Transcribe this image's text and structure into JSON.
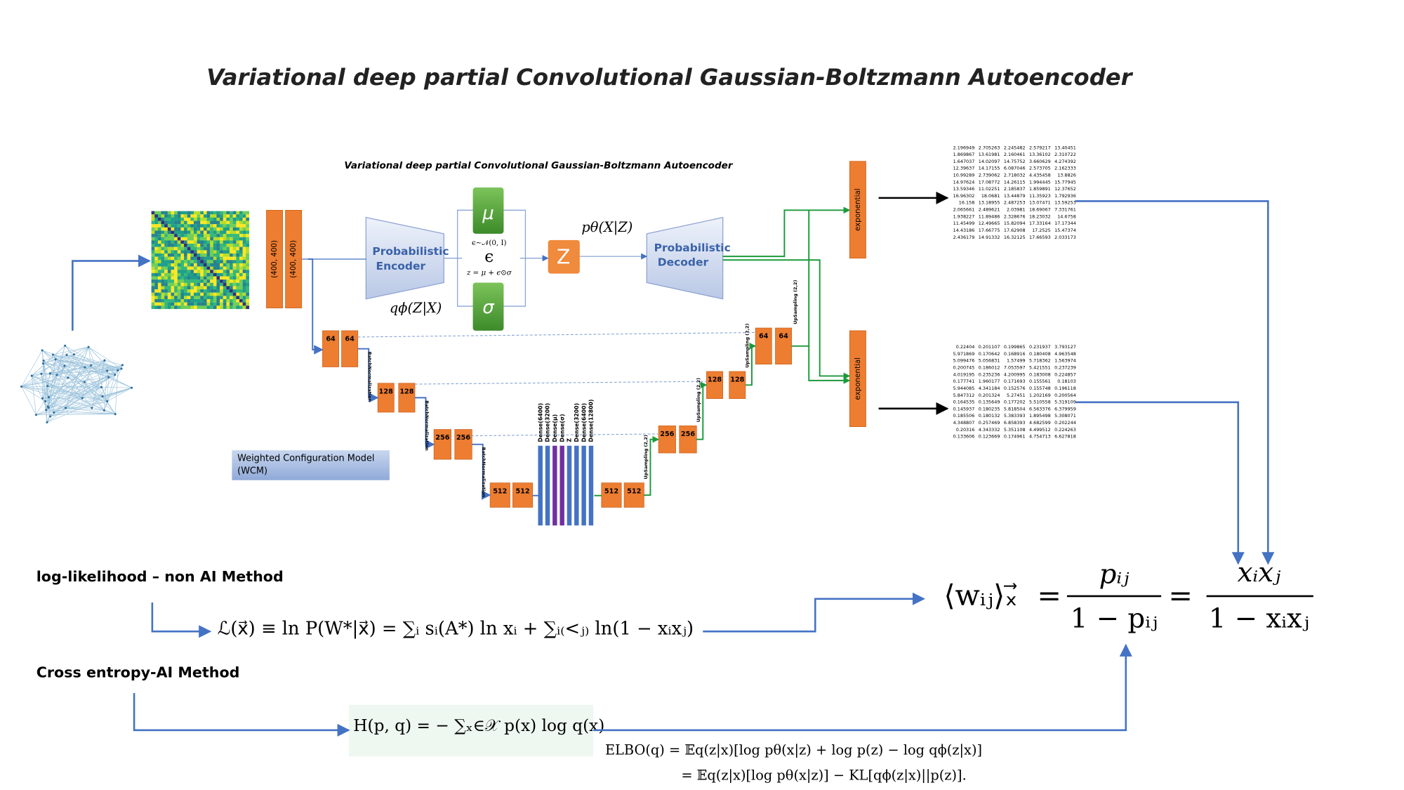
{
  "title": "Variational deep partial Convolutional Gaussian-Boltzmann Autoencoder",
  "diagram": {
    "inner_title": "Variational deep partial Convolutional Gaussian-Boltzmann Autoencoder",
    "input_shapes": [
      "(400, 400)",
      "(400, 400)"
    ],
    "encoder_label": [
      "Probabilistic",
      "Encoder"
    ],
    "decoder_label": [
      "Probabilistic",
      "Decoder"
    ],
    "mu": "μ",
    "sigma": "σ",
    "epsilon_dist": "ϵ∼𝒩(0, I)",
    "epsilon": "ϵ",
    "reparam": "z = μ + ϵ⊙σ",
    "z": "Z",
    "p_label": "pθ(X|Z)",
    "q_label": "qϕ(Z|X)",
    "exponential": [
      "exponential",
      "exponential"
    ],
    "encoder_blocks": [
      [
        "64",
        "64"
      ],
      [
        "128",
        "128"
      ],
      [
        "256",
        "256"
      ],
      [
        "512",
        "512"
      ]
    ],
    "decoder_blocks": [
      [
        "512",
        "512"
      ],
      [
        "256",
        "256"
      ],
      [
        "128",
        "128"
      ],
      [
        "64",
        "64"
      ]
    ],
    "batch_norm": [
      "BatchNormalization",
      "BatchNormalization",
      "BatchNormalization"
    ],
    "upsampling": [
      "UpSampling (2,2)",
      "UpSampling (2,2)",
      "UpSampling (2,2)",
      "UpSampling (2,2)"
    ],
    "dense": [
      "Dense(6400)",
      "Dense(3200)",
      "Dense(μ)",
      "Dense(σ)",
      "Z",
      "Dense(3200)",
      "Dense(6400)",
      "Dense(12800)"
    ],
    "wcm": [
      "Weighted Configuration Model",
      "(WCM)"
    ],
    "tables": [
      [
        [
          "2.196949",
          "2.705263",
          "2.245482",
          "2.579217",
          "13.40451"
        ],
        [
          "1.869867",
          "13.61981",
          "2.160461",
          "13.36102",
          "2.310722"
        ],
        [
          "1.647037",
          "14.02097",
          "14.75752",
          "3.660629",
          "4.274392"
        ],
        [
          "12.39637",
          "14.17155",
          "6.087046",
          "2.573705",
          "2.162333"
        ],
        [
          "10.99289",
          "2.739062",
          "2.718032",
          "4.435458",
          "13.8826"
        ],
        [
          "14.97624",
          "17.08772",
          "14.26115",
          "1.994445",
          "15.77945"
        ],
        [
          "13.59346",
          "11.02251",
          "2.185837",
          "1.859891",
          "12.37652"
        ],
        [
          "16.96302",
          "18.0681",
          "13.44879",
          "11.35923",
          "1.792936"
        ],
        [
          "16.158",
          "13.18955",
          "2.487253",
          "13.07471",
          "13.59253"
        ],
        [
          "2.065661",
          "2.489621",
          "2.03981",
          "18.69067",
          "7.331761"
        ],
        [
          "1.938227",
          "11.89486",
          "2.328676",
          "18.23032",
          "14.6758"
        ],
        [
          "11.45499",
          "12.49665",
          "15.82094",
          "17.33164",
          "17.17344"
        ],
        [
          "14.43186",
          "17.66775",
          "17.62908",
          "17.2525",
          "15.47374"
        ],
        [
          "2.436179",
          "14.91332",
          "16.32125",
          "17.66593",
          "2.033173"
        ]
      ],
      [
        [
          "0.22404",
          "0.201107",
          "0.199865",
          "0.231937",
          "3.793127"
        ],
        [
          "5.971869",
          "0.170642",
          "0.168916",
          "0.180408",
          "4.963548"
        ],
        [
          "5.099476",
          "5.056831",
          "1.57499",
          "5.718362",
          "1.563974"
        ],
        [
          "0.200745",
          "0.186012",
          "7.053597",
          "5.421551",
          "0.237239"
        ],
        [
          "4.019195",
          "0.235236",
          "4.200995",
          "0.183008",
          "0.224857"
        ],
        [
          "0.177741",
          "1.960177",
          "0.171693",
          "0.155561",
          "0.18103"
        ],
        [
          "5.944085",
          "4.341184",
          "0.152576",
          "0.155748",
          "0.196118"
        ],
        [
          "5.847312",
          "0.201324",
          "5.27451",
          "1.202169",
          "0.200564"
        ],
        [
          "0.164535",
          "0.135649",
          "0.177202",
          "5.510558",
          "5.319109"
        ],
        [
          "0.145937",
          "0.180235",
          "5.818504",
          "6.563376",
          "6.379959"
        ],
        [
          "0.185506",
          "0.180132",
          "5.383393",
          "1.895498",
          "5.308071"
        ],
        [
          "4.348807",
          "0.257469",
          "6.858393",
          "4.682599",
          "0.202244"
        ],
        [
          "0.20316",
          "4.343332",
          "5.351108",
          "4.499512",
          "0.224263"
        ],
        [
          "0.133606",
          "0.123669",
          "0.174961",
          "4.754713",
          "6.627818"
        ]
      ]
    ]
  },
  "methods": [
    "log-likelihood – non AI Method",
    "Cross entropy-AI Method"
  ],
  "formulas": {
    "likelihood": "ℒ(x⃗) ≡ ln P(W*|x⃗) = ∑ᵢ sᵢ(A*) ln xᵢ + ∑ᵢ₍<ⱼ₎ ln(1 − xᵢxⱼ)",
    "weight": {
      "lhs": "⟨wᵢⱼ⟩ₓ⃗",
      "eq": "=",
      "num1": "pᵢⱼ",
      "den1": "1 − pᵢⱼ",
      "num2": "xᵢxⱼ",
      "den2": "1 − xᵢxⱼ"
    },
    "cross_entropy": "H(p, q) = − ∑ₓ∈𝒳 p(x) log q(x)",
    "elbo": [
      "ELBO(q) = 𝔼q(z|x)[log pθ(x|z) + log p(z) − log qϕ(z|x)]",
      "= 𝔼q(z|x)[log pθ(x|z)] − KL[qϕ(z|x)||p(z)]."
    ]
  }
}
